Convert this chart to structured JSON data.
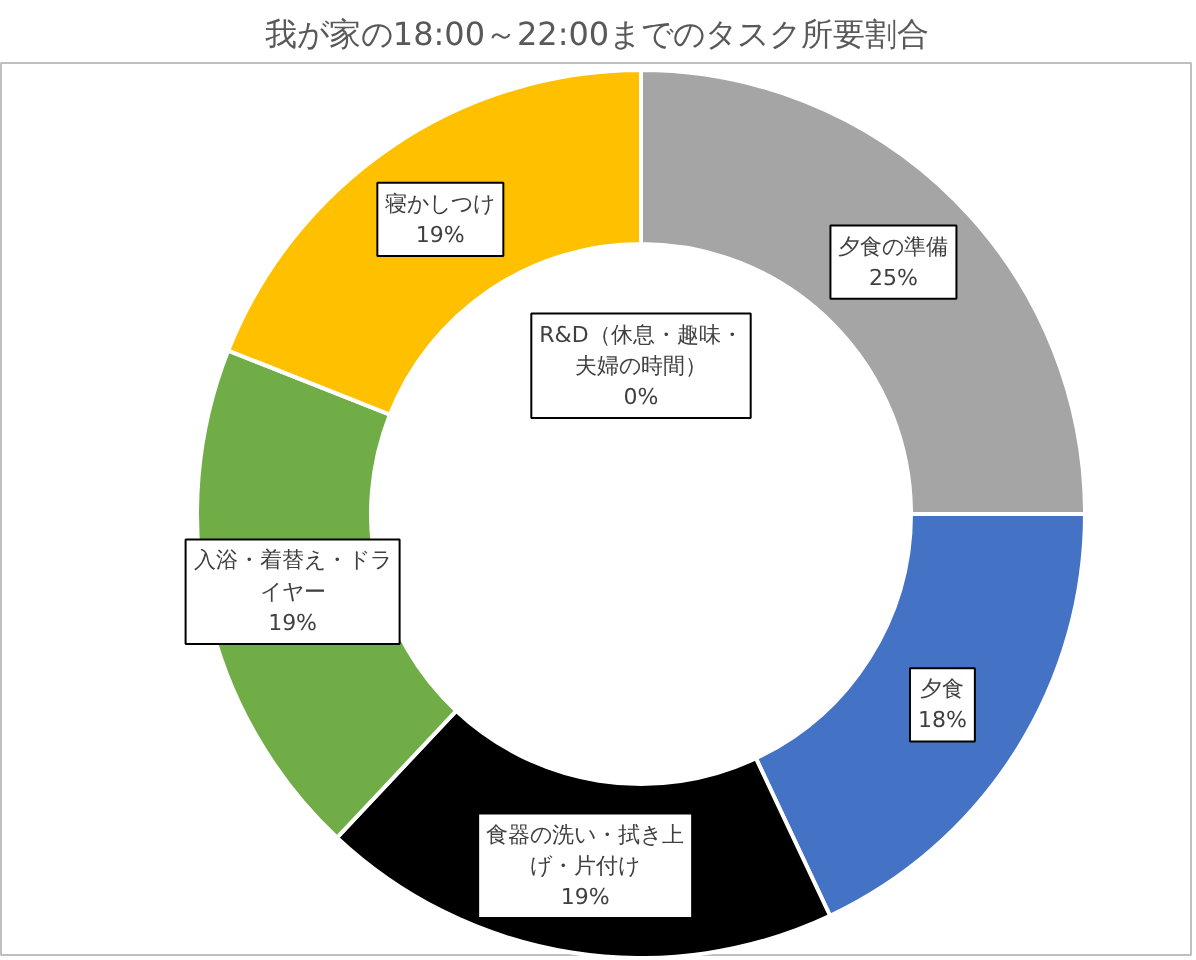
{
  "chart_data": {
    "type": "donut",
    "title": "我が家の18:00～22:00までのタスク所要割合",
    "categories": [
      "夕食の準備",
      "夕食",
      "食器の洗い・拭き上げ・片付け",
      "入浴・着替え・ドライヤー",
      "寝かしつけ",
      "R&D（休息・趣味・夫婦の時間）"
    ],
    "values": [
      25,
      18,
      19,
      19,
      19,
      0
    ],
    "value_labels": [
      "25%",
      "18%",
      "19%",
      "19%",
      "19%",
      "0%"
    ],
    "colors": [
      "#a5a5a5",
      "#4472c4",
      "#000000",
      "#70ad47",
      "#ffc000",
      "#5b9bd5"
    ]
  }
}
